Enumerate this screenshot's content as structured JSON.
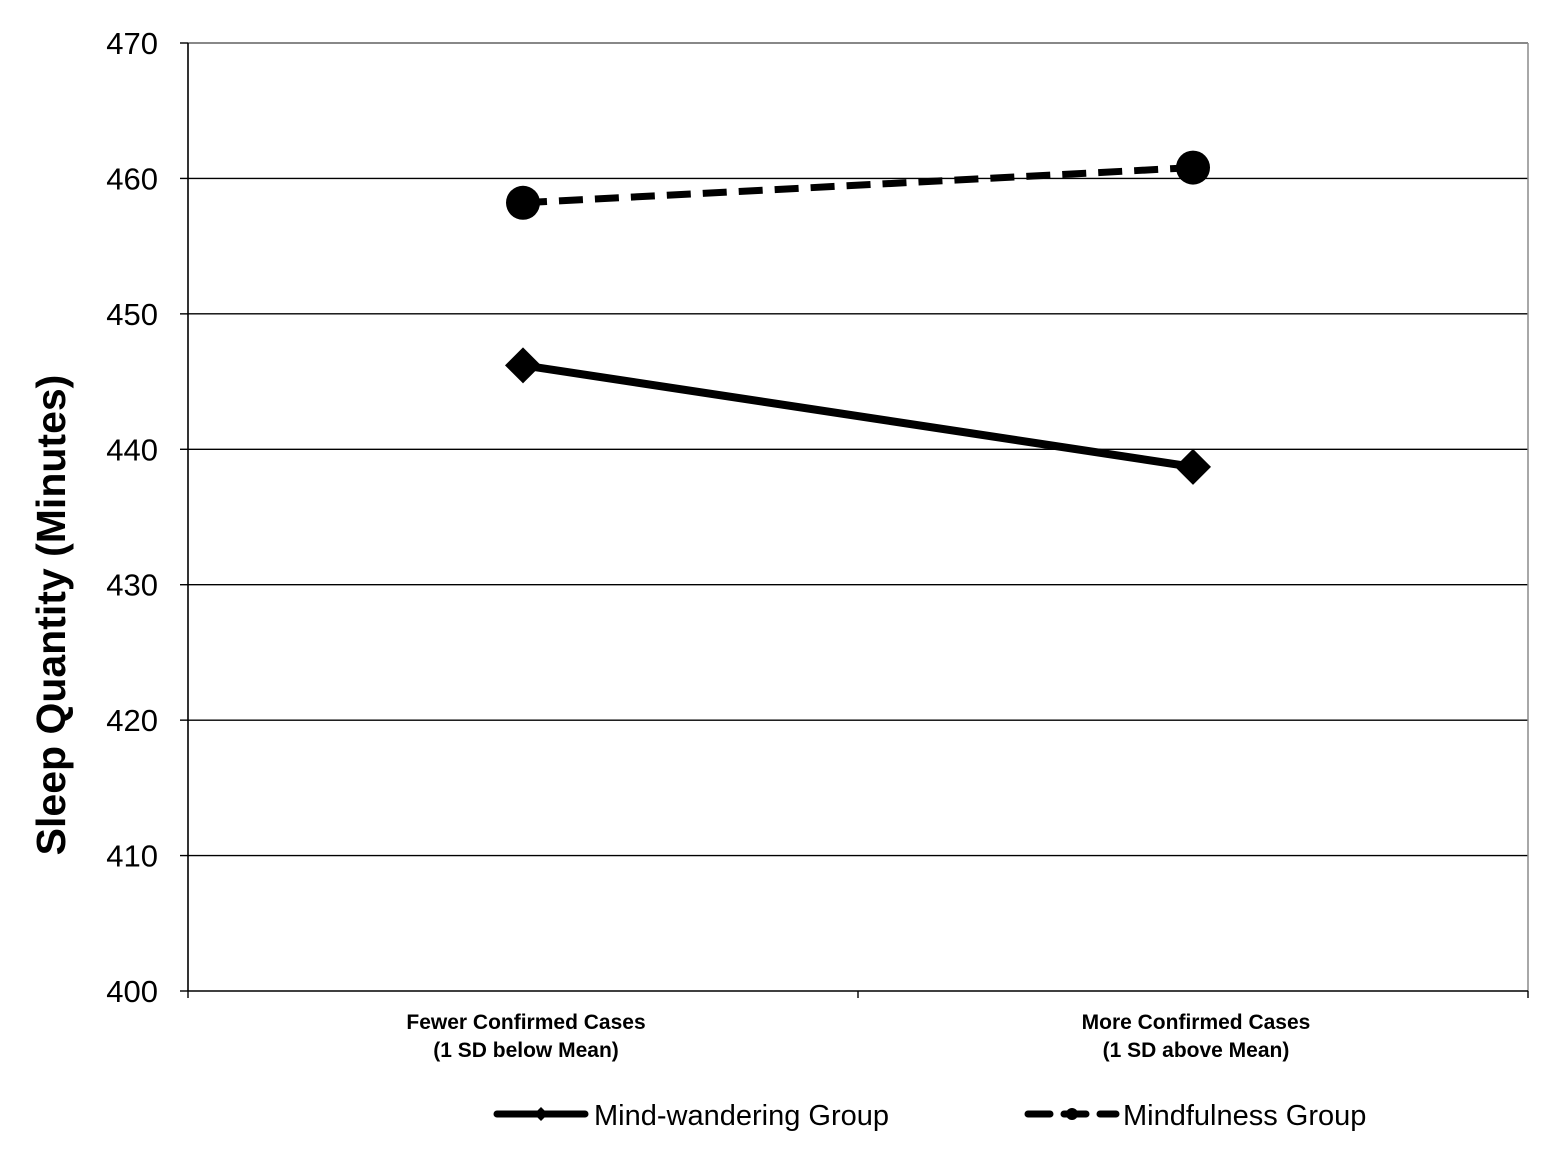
{
  "chart_data": {
    "type": "line",
    "ylabel": "Sleep Quantity (Minutes)",
    "xlabel": "",
    "ylim": [
      400,
      470
    ],
    "ytick_step": 10,
    "grid": "horizontal",
    "legend_placement": "bottom",
    "categories": [
      [
        "Fewer Confirmed Cases",
        "(1 SD below Mean)"
      ],
      [
        "More Confirmed Cases",
        "(1 SD above Mean)"
      ]
    ],
    "series": [
      {
        "name": "Mind-wandering Group",
        "values": [
          446.2,
          438.7
        ],
        "line_style": "solid",
        "marker": "diamond",
        "color": "#000000"
      },
      {
        "name": "Mindfulness Group",
        "values": [
          458.2,
          460.8
        ],
        "line_style": "dashed",
        "marker": "circle",
        "color": "#000000"
      }
    ]
  }
}
